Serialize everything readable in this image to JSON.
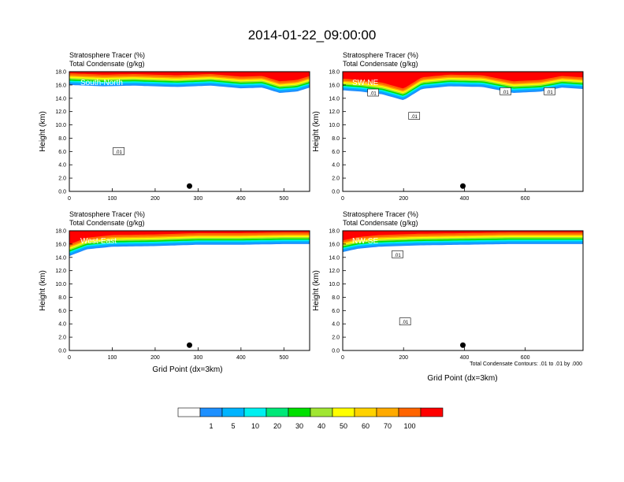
{
  "title": "2014-01-22_09:00:00",
  "colorbar": {
    "colors": [
      "#ffffff",
      "#1e90ff",
      "#00b4ff",
      "#00f0f0",
      "#00e878",
      "#00e000",
      "#a0e632",
      "#ffff00",
      "#ffd200",
      "#ffaa00",
      "#ff6400",
      "#ff0000"
    ],
    "labels": [
      "1",
      "5",
      "10",
      "20",
      "30",
      "40",
      "50",
      "60",
      "70",
      "100"
    ]
  },
  "contour_note": "Total Condensate Contours: .01 to .01 by .000",
  "chart_data": [
    {
      "type": "heatmap",
      "title_lines": [
        "Stratosphere Tracer   (%)",
        "Total Condensate   (g/kg)"
      ],
      "panel_label": "South-North",
      "xlabel": "",
      "ylabel": "Height (km)",
      "xlim": [
        0,
        560
      ],
      "ylim": [
        0,
        18
      ],
      "xticks": [
        0,
        100,
        200,
        300,
        400,
        500
      ],
      "yticks": [
        "0.0",
        "2.0",
        "4.0",
        "6.0",
        "8.0",
        "10.0",
        "12.0",
        "14.0",
        "16.0",
        "18.0"
      ],
      "marker_x": 280,
      "contour_labels": [
        {
          "text": ".01",
          "x": 115,
          "y": 6
        }
      ],
      "tracer_front": [
        [
          0,
          16
        ],
        [
          80,
          15.8
        ],
        [
          150,
          15.9
        ],
        [
          250,
          15.7
        ],
        [
          330,
          15.9
        ],
        [
          400,
          15.5
        ],
        [
          450,
          15.6
        ],
        [
          490,
          14.8
        ],
        [
          530,
          15.0
        ],
        [
          560,
          15.6
        ]
      ]
    },
    {
      "type": "heatmap",
      "title_lines": [
        "Stratosphere Tracer   (%)",
        "Total Condensate   (g/kg)"
      ],
      "panel_label": "SW-NE",
      "xlabel": "",
      "ylabel": "Height (km)",
      "xlim": [
        0,
        790
      ],
      "ylim": [
        0,
        18
      ],
      "xticks": [
        0,
        200,
        400,
        600
      ],
      "yticks": [
        "0.0",
        "2.0",
        "4.0",
        "6.0",
        "8.0",
        "10.0",
        "12.0",
        "14.0",
        "16.0",
        "18.0"
      ],
      "marker_x": 395,
      "contour_labels": [
        {
          "text": ".01",
          "x": 100,
          "y": 14.8
        },
        {
          "text": ".01",
          "x": 235,
          "y": 11.3
        },
        {
          "text": ".01",
          "x": 535,
          "y": 15.0
        },
        {
          "text": ".01",
          "x": 680,
          "y": 15.0
        }
      ],
      "tracer_front": [
        [
          0,
          15.2
        ],
        [
          60,
          15.0
        ],
        [
          130,
          14.6
        ],
        [
          200,
          13.7
        ],
        [
          260,
          15.4
        ],
        [
          350,
          15.8
        ],
        [
          460,
          15.7
        ],
        [
          560,
          14.8
        ],
        [
          650,
          15.0
        ],
        [
          720,
          15.6
        ],
        [
          790,
          15.4
        ]
      ]
    },
    {
      "type": "heatmap",
      "title_lines": [
        "Stratosphere Tracer   (%)",
        "Total Condensate   (g/kg)"
      ],
      "panel_label": "West-East",
      "xlabel": "Grid Point (dx=3km)",
      "ylabel": "Height (km)",
      "xlim": [
        0,
        560
      ],
      "ylim": [
        0,
        18
      ],
      "xticks": [
        0,
        100,
        200,
        300,
        400,
        500
      ],
      "yticks": [
        "0.0",
        "2.0",
        "4.0",
        "6.0",
        "8.0",
        "10.0",
        "12.0",
        "14.0",
        "16.0",
        "18.0"
      ],
      "marker_x": 280,
      "contour_labels": [],
      "tracer_front": [
        [
          0,
          14.2
        ],
        [
          40,
          15.2
        ],
        [
          100,
          15.6
        ],
        [
          200,
          15.7
        ],
        [
          300,
          15.9
        ],
        [
          400,
          15.9
        ],
        [
          500,
          16.0
        ],
        [
          560,
          16.0
        ]
      ]
    },
    {
      "type": "heatmap",
      "title_lines": [
        "Stratosphere Tracer   (%)",
        "Total Condensate   (g/kg)"
      ],
      "panel_label": "NW-SE",
      "xlabel": "Grid Point (dx=3km)",
      "ylabel": "Height (km)",
      "xlim": [
        0,
        790
      ],
      "ylim": [
        0,
        18
      ],
      "xticks": [
        0,
        200,
        400,
        600
      ],
      "yticks": [
        "0.0",
        "2.0",
        "4.0",
        "6.0",
        "8.0",
        "10.0",
        "12.0",
        "14.0",
        "16.0",
        "18.0"
      ],
      "marker_x": 395,
      "contour_labels": [
        {
          "text": ".01",
          "x": 180,
          "y": 14.4
        },
        {
          "text": ".01",
          "x": 205,
          "y": 4.3
        }
      ],
      "tracer_front": [
        [
          0,
          14.8
        ],
        [
          50,
          15.3
        ],
        [
          120,
          15.6
        ],
        [
          250,
          15.8
        ],
        [
          400,
          15.9
        ],
        [
          550,
          16.0
        ],
        [
          700,
          16.0
        ],
        [
          790,
          16.0
        ]
      ]
    }
  ]
}
